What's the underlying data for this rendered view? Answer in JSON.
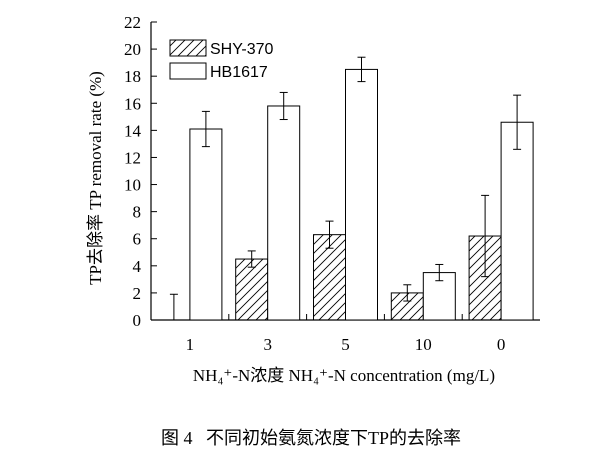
{
  "chart_data": {
    "type": "bar",
    "categories": [
      "1",
      "3",
      "5",
      "10",
      "0"
    ],
    "series": [
      {
        "name": "SHY-370",
        "values": [
          0,
          4.5,
          6.3,
          2.0,
          6.2
        ],
        "errors": [
          1.9,
          0.6,
          1.0,
          0.6,
          3.0
        ],
        "pattern": "hatched"
      },
      {
        "name": "HB1617",
        "values": [
          14.1,
          15.8,
          18.5,
          3.5,
          14.6
        ],
        "errors": [
          1.3,
          1.0,
          0.9,
          0.6,
          2.0
        ],
        "pattern": "open"
      }
    ],
    "ylabel": "TP去除率 TP removal rate (%)",
    "xlabel": "NH₄⁺-N浓度 NH₄⁺-N concentration (mg/L)",
    "ylim": [
      0,
      22
    ],
    "yticks": [
      0,
      2,
      4,
      6,
      8,
      10,
      12,
      14,
      16,
      18,
      20,
      22
    ],
    "legend_position": "top-left",
    "grid": false
  },
  "caption": "图 4   不同初始氨氮浓度下TP的去除率"
}
